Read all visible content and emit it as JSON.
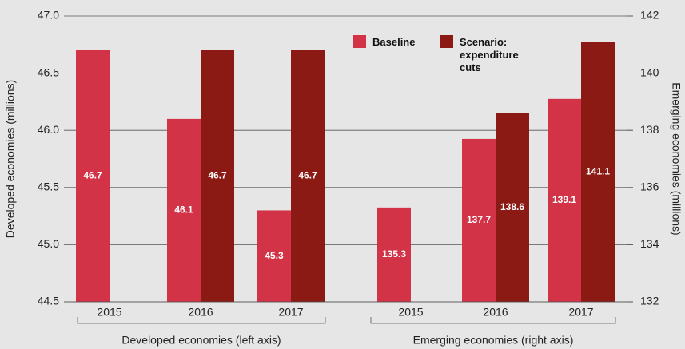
{
  "chart_data": {
    "type": "bar",
    "y_label": "Developed economies (millions)",
    "y2_label": "Emerging economies (millions)",
    "ylim": [
      44.5,
      47.0
    ],
    "yticks": [
      44.5,
      {
        "value": 45,
        "label": "45.0"
      },
      45.5,
      {
        "value": 46,
        "label": "46.0"
      },
      46.5,
      {
        "value": 47,
        "label": "47.0"
      }
    ],
    "y2lim": [
      132,
      142
    ],
    "y2ticks": [
      132,
      134,
      136,
      138,
      140,
      142
    ],
    "legend": "top-right",
    "series": [
      {
        "name": "Baseline",
        "color": "#d23347"
      },
      {
        "name": "Scenario: expenditure cuts",
        "color": "#8b1a15"
      }
    ],
    "groups": [
      {
        "label": "Developed economies (left axis)",
        "axis": "y",
        "categories": [
          "2015",
          "2016",
          "2017"
        ],
        "values": [
          [
            46.7,
            46.1,
            45.3
          ],
          [
            null,
            46.7,
            46.7
          ]
        ]
      },
      {
        "label": "Emerging economies (right axis)",
        "axis": "y2",
        "categories": [
          "2015",
          "2016",
          "2017"
        ],
        "values": [
          [
            135.3,
            137.7,
            139.1
          ],
          [
            null,
            138.6,
            141.1
          ]
        ]
      }
    ]
  }
}
